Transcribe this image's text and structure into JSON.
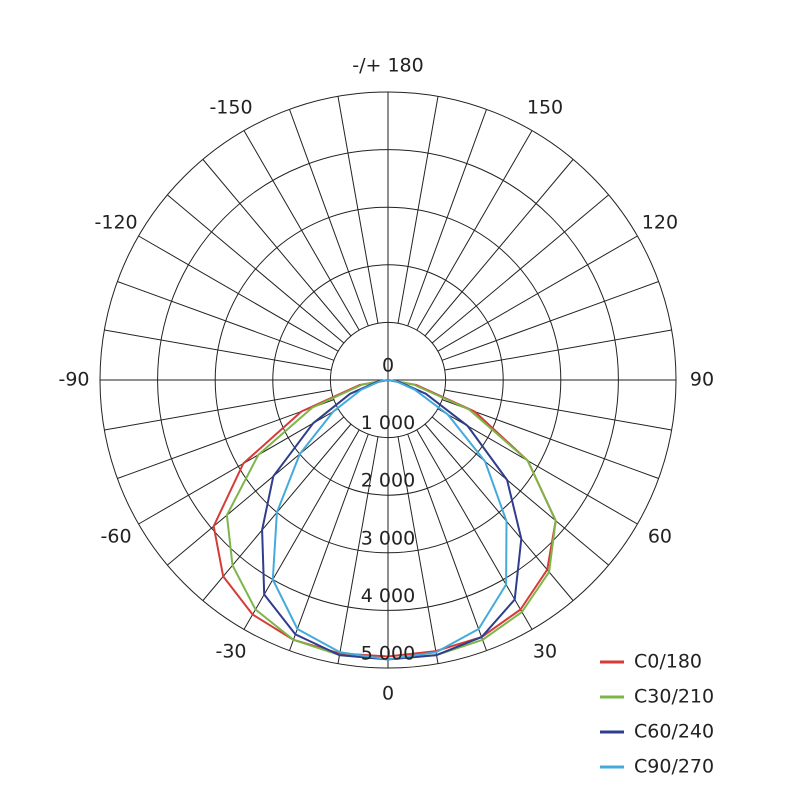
{
  "chart_data": {
    "type": "polar",
    "theta": [
      -90,
      -80,
      -70,
      -60,
      -50,
      -40,
      -30,
      -20,
      -10,
      0,
      10,
      20,
      30,
      40,
      50,
      60,
      70,
      80,
      90
    ],
    "rlim": [
      0,
      5000
    ],
    "rticks": [
      0,
      {
        "value": 1000,
        "label": "1 000"
      },
      {
        "value": 2000,
        "label": "2 000"
      },
      {
        "value": 3000,
        "label": "3 000"
      },
      {
        "value": 4000,
        "label": "4 000"
      },
      {
        "value": 5000,
        "label": "5 000"
      }
    ],
    "thetaticks": [
      0,
      30,
      60,
      90,
      120,
      150,
      {
        "value": 180,
        "label": "-/+ 180"
      },
      -150,
      -120,
      -90,
      -60,
      -30
    ],
    "grid": true,
    "legend": "lower right",
    "series": [
      {
        "name": "C0/180",
        "color": "#d63b35",
        "values": [
          0,
          500,
          1600,
          2900,
          3950,
          4450,
          4700,
          4800,
          4820,
          4800,
          4780,
          4750,
          4600,
          4300,
          3800,
          2800,
          1600,
          500,
          0
        ]
      },
      {
        "name": "C30/210",
        "color": "#7db54a",
        "values": [
          0,
          450,
          1400,
          2600,
          3650,
          4200,
          4600,
          4800,
          4850,
          4850,
          4850,
          4800,
          4650,
          4350,
          3800,
          2800,
          1500,
          450,
          0
        ]
      },
      {
        "name": "C60/240",
        "color": "#2e3d8c",
        "values": [
          0,
          200,
          700,
          1500,
          2600,
          3400,
          4300,
          4700,
          4850,
          4850,
          4850,
          4750,
          4400,
          3600,
          2700,
          1600,
          700,
          200,
          0
        ]
      },
      {
        "name": "C90/270",
        "color": "#44aadc",
        "values": [
          0,
          150,
          500,
          1100,
          2000,
          3000,
          4000,
          4600,
          4800,
          4850,
          4800,
          4600,
          4100,
          3200,
          2200,
          1200,
          500,
          150,
          0
        ]
      }
    ]
  }
}
